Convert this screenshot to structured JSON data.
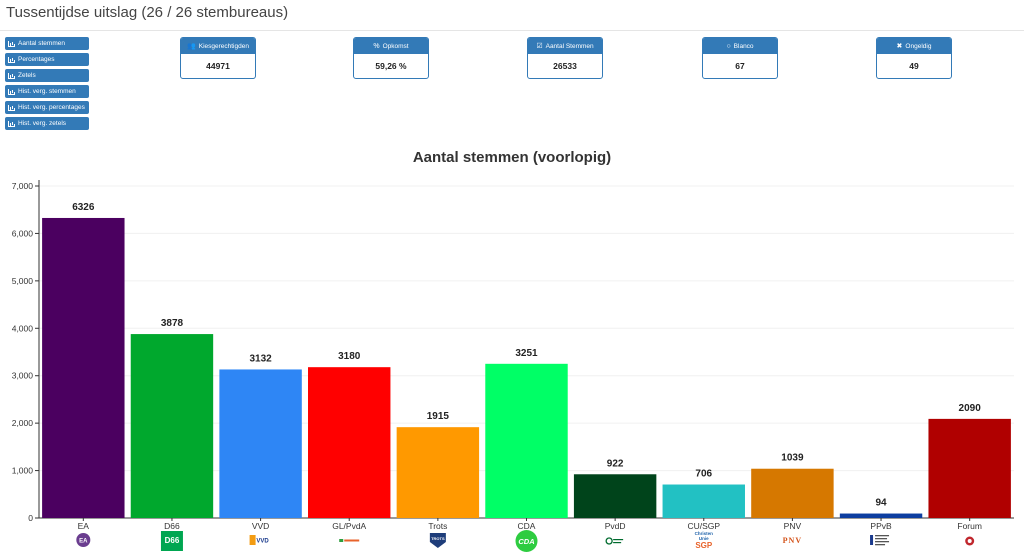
{
  "page": {
    "title": "Tussentijdse uitslag (26 / 26 stembureaus)"
  },
  "nav_buttons": [
    "Aantal stemmen",
    "Percentages",
    "Zetels",
    "Hist. verg. stemmen",
    "Hist. verg. percentages",
    "Hist. verg. zetels"
  ],
  "stats": [
    {
      "label": "Kiesgerechtigden",
      "value": "44971",
      "icon": "users-icon",
      "glyph": "👥"
    },
    {
      "label": "Opkomst",
      "value": "59,26 %",
      "icon": "percent-icon",
      "glyph": "%"
    },
    {
      "label": "Aantal Stemmen",
      "value": "26533",
      "icon": "check-square-icon",
      "glyph": "☑"
    },
    {
      "label": "Blanco",
      "value": "67",
      "icon": "circle-icon",
      "glyph": "○"
    },
    {
      "label": "Ongeldig",
      "value": "49",
      "icon": "times-icon",
      "glyph": "✖"
    }
  ],
  "chart_data": {
    "type": "bar",
    "title": "Aantal stemmen (voorlopig)",
    "categories": [
      "EA",
      "D66",
      "VVD",
      "GL/PvdA",
      "Trots",
      "CDA",
      "PvdD",
      "CU/SGP",
      "PNV",
      "PPvB",
      "Forum"
    ],
    "values": [
      6326,
      3878,
      3132,
      3180,
      1915,
      3251,
      922,
      706,
      1039,
      94,
      2090
    ],
    "colors": [
      "#4b0060",
      "#00a82d",
      "#2e86f5",
      "#ff0000",
      "#ff9900",
      "#00ff66",
      "#00441b",
      "#22c1c3",
      "#d67800",
      "#0d3ea0",
      "#b00000"
    ],
    "ylim": [
      0,
      7000
    ],
    "yticks": [
      0,
      1000,
      2000,
      3000,
      4000,
      5000,
      6000,
      7000
    ],
    "ytick_labels": [
      "0",
      "1,000",
      "2,000",
      "3,000",
      "4,000",
      "5,000",
      "6,000",
      "7,000"
    ],
    "xlabel": "",
    "ylabel": "",
    "grid": true,
    "legend": "none"
  },
  "logos": [
    {
      "party": "EA",
      "text": "EA",
      "color": "#6a3d8f"
    },
    {
      "party": "D66",
      "text": "D66",
      "color": "#00a651"
    },
    {
      "party": "VVD",
      "text": "VVD",
      "color": "#1a3a8c"
    },
    {
      "party": "GL/PvdA",
      "text": "GroenLinks PvdA",
      "color": "#e8632b"
    },
    {
      "party": "Trots",
      "text": "TROTS",
      "color": "#1e3d7a"
    },
    {
      "party": "CDA",
      "text": "CDA",
      "color": "#2ecc40"
    },
    {
      "party": "PvdD",
      "text": "Partij voor de Dieren",
      "color": "#006b2e"
    },
    {
      "party": "CU/SGP",
      "text": "Christen Unie SGP",
      "color": "#e8632b"
    },
    {
      "party": "PNV",
      "text": "PNV",
      "color": "#d4531a"
    },
    {
      "party": "PPvB",
      "text": "Bewoners",
      "color": "#1a3a8c"
    },
    {
      "party": "Forum",
      "text": "FvD",
      "color": "#c0272d"
    }
  ]
}
